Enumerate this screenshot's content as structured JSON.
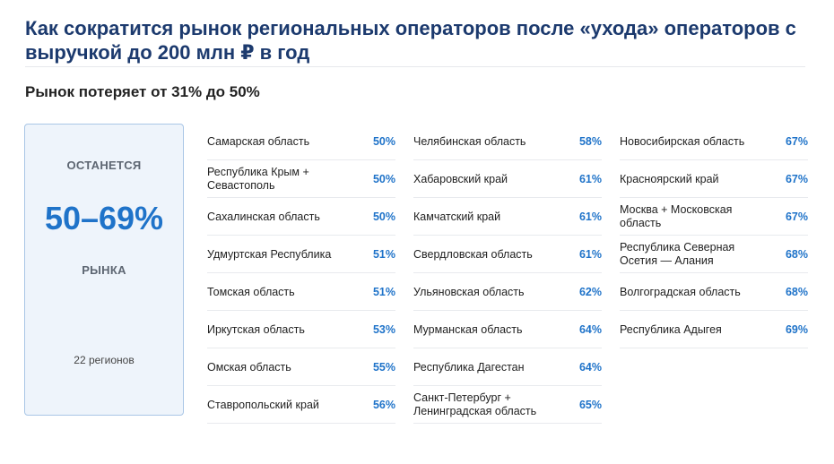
{
  "title": "Как сократится рынок региональных операторов после «ухода» операторов с выручкой до 200 млн ₽ в год",
  "subtitle": "Рынок потеряет от 31% до 50%",
  "summary": {
    "top_label": "ОСТАНЕТСЯ",
    "value": "50–69%",
    "bottom_label": "РЫНКА",
    "regions_count": "22 регионов"
  },
  "columns": [
    [
      {
        "name": "Самарская область",
        "pct": "50%"
      },
      {
        "name": "Республика Крым + Севастополь",
        "pct": "50%"
      },
      {
        "name": "Сахалинская область",
        "pct": "50%"
      },
      {
        "name": "Удмуртская Республика",
        "pct": "51%"
      },
      {
        "name": "Томская область",
        "pct": "51%"
      },
      {
        "name": "Иркутская область",
        "pct": "53%"
      },
      {
        "name": "Омская область",
        "pct": "55%"
      },
      {
        "name": "Ставропольский край",
        "pct": "56%"
      }
    ],
    [
      {
        "name": "Челябинская область",
        "pct": "58%"
      },
      {
        "name": "Хабаровский край",
        "pct": "61%"
      },
      {
        "name": "Камчатский край",
        "pct": "61%"
      },
      {
        "name": "Свердловская область",
        "pct": "61%"
      },
      {
        "name": "Ульяновская область",
        "pct": "62%"
      },
      {
        "name": "Мурманская область",
        "pct": "64%"
      },
      {
        "name": "Республика Дагестан",
        "pct": "64%"
      },
      {
        "name": "Санкт-Петербург + Ленинградская область",
        "pct": "65%"
      }
    ],
    [
      {
        "name": "Новосибирская область",
        "pct": "67%"
      },
      {
        "name": "Красноярский край",
        "pct": "67%"
      },
      {
        "name": "Москва + Московская область",
        "pct": "67%"
      },
      {
        "name": "Республика Северная Осетия — Алания",
        "pct": "68%"
      },
      {
        "name": "Волгоградская область",
        "pct": "68%"
      },
      {
        "name": "Республика Адыгея",
        "pct": "69%"
      }
    ]
  ],
  "colors": {
    "title": "#1c3a6e",
    "accent": "#1f73c9",
    "card_bg": "#eef4fb",
    "card_border": "#a9c6e6"
  }
}
